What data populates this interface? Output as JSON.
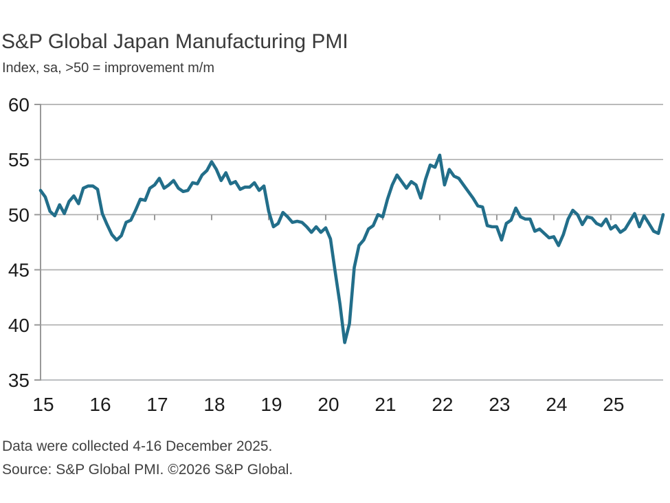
{
  "header": {
    "title": "S&P Global Japan Manufacturing PMI",
    "subtitle": "Index, sa, >50 = improvement m/m"
  },
  "footer": {
    "note": "Data were collected 4-16 December 2025.",
    "source": "Source: S&P Global PMI. ©2026 S&P Global."
  },
  "chart_data": {
    "type": "line",
    "title": "S&P Global Japan Manufacturing PMI",
    "subtitle": "Index, sa, >50 = improvement m/m",
    "series_name": "Japan Manufacturing PMI (index, sa)",
    "x_unit": "month",
    "x_start": "2015-01",
    "x_end": "2025-12",
    "x_tick_labels": [
      "15",
      "16",
      "17",
      "18",
      "19",
      "20",
      "21",
      "22",
      "23",
      "24",
      "25"
    ],
    "y_ticks": [
      35,
      40,
      45,
      50,
      55,
      60
    ],
    "ylim": [
      35,
      60
    ],
    "baseline_value": 50,
    "grid": "horizontal",
    "legend": "none",
    "line_color": "#226E8A",
    "gridline_color": "#b0b0b0",
    "axis_color": "#999999",
    "bottom_axis_color": "#bcbfc1",
    "label_color": "#1c1c1c",
    "values": [
      52.2,
      51.6,
      50.3,
      49.9,
      50.9,
      50.1,
      51.2,
      51.7,
      51.0,
      52.4,
      52.6,
      52.6,
      52.3,
      50.1,
      49.1,
      48.2,
      47.7,
      48.1,
      49.3,
      49.5,
      50.4,
      51.4,
      51.3,
      52.4,
      52.7,
      53.3,
      52.4,
      52.7,
      53.1,
      52.4,
      52.1,
      52.2,
      52.9,
      52.8,
      53.6,
      54.0,
      54.8,
      54.1,
      53.1,
      53.8,
      52.8,
      53.0,
      52.3,
      52.5,
      52.5,
      52.9,
      52.2,
      52.6,
      50.3,
      48.9,
      49.2,
      50.2,
      49.8,
      49.3,
      49.4,
      49.3,
      48.9,
      48.4,
      48.9,
      48.4,
      48.8,
      47.8,
      44.8,
      41.9,
      38.4,
      40.1,
      45.2,
      47.2,
      47.7,
      48.7,
      49.0,
      50.0,
      49.8,
      51.4,
      52.7,
      53.6,
      53.0,
      52.4,
      53.0,
      52.7,
      51.5,
      53.2,
      54.5,
      54.3,
      55.4,
      52.7,
      54.1,
      53.5,
      53.3,
      52.7,
      52.1,
      51.5,
      50.8,
      50.7,
      49.0,
      48.9,
      48.9,
      47.7,
      49.2,
      49.5,
      50.6,
      49.8,
      49.6,
      49.6,
      48.5,
      48.7,
      48.3,
      47.9,
      48.0,
      47.2,
      48.2,
      49.6,
      50.4,
      50.0,
      49.1,
      49.8,
      49.7,
      49.2,
      49.0,
      49.6,
      48.7,
      49.0,
      48.4,
      48.7,
      49.4,
      50.1,
      48.9,
      49.9,
      49.2,
      48.5,
      48.3,
      50.0
    ]
  }
}
